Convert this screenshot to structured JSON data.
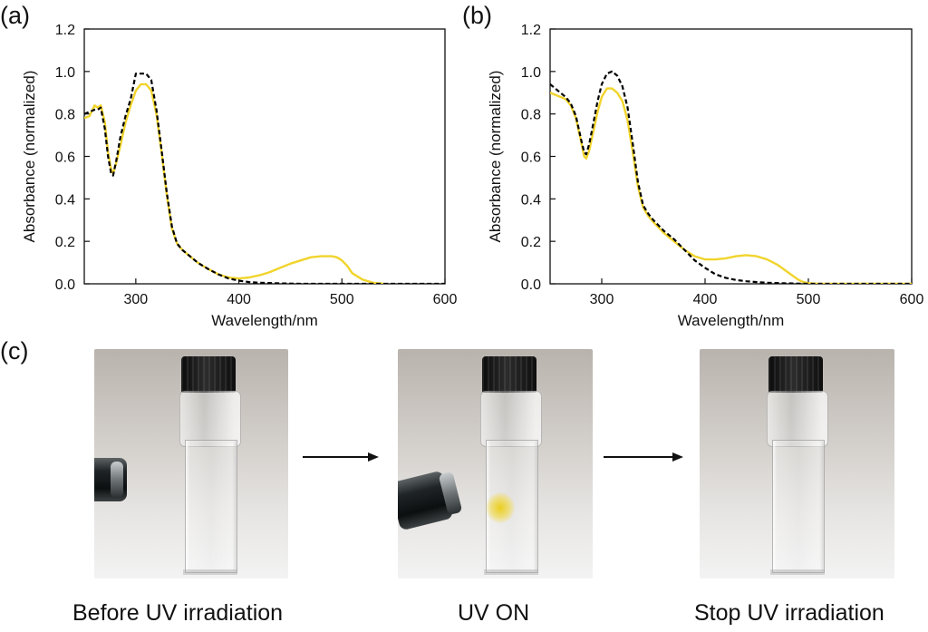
{
  "panels": {
    "a": "(a)",
    "b": "(b)",
    "c": "(c)"
  },
  "colors": {
    "irradiated": "#f1d42c",
    "reference": "#000000"
  },
  "chart_data": [
    {
      "id": "a",
      "type": "line",
      "xlabel": "Wavelength/nm",
      "ylabel": "Absorbance (normalized)",
      "xlim": [
        250,
        600
      ],
      "ylim": [
        0.0,
        1.2
      ],
      "xticks": [
        300,
        400,
        500,
        600
      ],
      "yticks": [
        "0.0",
        "0.2",
        "0.4",
        "0.6",
        "0.8",
        "1.0",
        "1.2"
      ],
      "series": [
        {
          "name": "yellow (UV irradiated)",
          "style": "solid",
          "x": [
            250,
            255,
            260,
            263,
            266,
            270,
            273,
            276,
            278,
            281,
            285,
            290,
            295,
            300,
            305,
            310,
            315,
            320,
            325,
            330,
            335,
            340,
            345,
            350,
            355,
            360,
            370,
            380,
            390,
            400,
            410,
            420,
            430,
            440,
            450,
            460,
            470,
            480,
            490,
            495,
            500,
            505,
            510,
            520,
            530,
            540
          ],
          "y": [
            0.78,
            0.79,
            0.84,
            0.83,
            0.84,
            0.76,
            0.62,
            0.54,
            0.52,
            0.57,
            0.65,
            0.76,
            0.84,
            0.91,
            0.94,
            0.94,
            0.91,
            0.8,
            0.62,
            0.42,
            0.26,
            0.19,
            0.16,
            0.14,
            0.12,
            0.1,
            0.07,
            0.045,
            0.03,
            0.025,
            0.03,
            0.04,
            0.055,
            0.075,
            0.095,
            0.11,
            0.125,
            0.13,
            0.13,
            0.125,
            0.11,
            0.085,
            0.05,
            0.02,
            0.005,
            0.0
          ]
        },
        {
          "name": "black (before irradiation)",
          "style": "dashed",
          "x": [
            250,
            255,
            260,
            263,
            266,
            270,
            273,
            276,
            278,
            281,
            285,
            290,
            295,
            300,
            305,
            310,
            315,
            320,
            325,
            330,
            335,
            340,
            345,
            350,
            355,
            360,
            370,
            380,
            390,
            400,
            410,
            420,
            440,
            460,
            480,
            500,
            540,
            600
          ],
          "y": [
            0.8,
            0.81,
            0.82,
            0.82,
            0.83,
            0.73,
            0.6,
            0.52,
            0.51,
            0.58,
            0.69,
            0.79,
            0.87,
            0.99,
            0.99,
            0.99,
            0.96,
            0.82,
            0.63,
            0.43,
            0.27,
            0.19,
            0.16,
            0.14,
            0.12,
            0.1,
            0.07,
            0.045,
            0.025,
            0.015,
            0.008,
            0.005,
            0.002,
            0.0,
            0.0,
            0.0,
            0.0,
            0.0
          ]
        }
      ]
    },
    {
      "id": "b",
      "type": "line",
      "xlabel": "Wavelength/nm",
      "ylabel": "Absorbance (normalized)",
      "xlim": [
        250,
        600
      ],
      "ylim": [
        0.0,
        1.2
      ],
      "xticks": [
        300,
        400,
        500,
        600
      ],
      "yticks": [
        "0.0",
        "0.2",
        "0.4",
        "0.6",
        "0.8",
        "1.0",
        "1.2"
      ],
      "series": [
        {
          "name": "yellow (UV irradiated)",
          "style": "solid",
          "x": [
            250,
            255,
            260,
            265,
            270,
            275,
            280,
            283,
            285,
            288,
            292,
            296,
            300,
            305,
            310,
            315,
            320,
            325,
            330,
            335,
            340,
            345,
            350,
            360,
            370,
            380,
            390,
            400,
            410,
            420,
            430,
            440,
            450,
            460,
            470,
            480,
            490,
            495,
            500,
            510,
            600
          ],
          "y": [
            0.9,
            0.89,
            0.88,
            0.87,
            0.84,
            0.78,
            0.67,
            0.6,
            0.59,
            0.63,
            0.72,
            0.81,
            0.88,
            0.92,
            0.92,
            0.9,
            0.86,
            0.77,
            0.62,
            0.46,
            0.36,
            0.32,
            0.29,
            0.24,
            0.2,
            0.16,
            0.13,
            0.115,
            0.115,
            0.12,
            0.13,
            0.135,
            0.13,
            0.115,
            0.09,
            0.055,
            0.02,
            0.008,
            0.003,
            0.0,
            0.0
          ]
        },
        {
          "name": "black (before irradiation)",
          "style": "dashed",
          "x": [
            250,
            255,
            260,
            265,
            270,
            275,
            280,
            283,
            285,
            288,
            292,
            296,
            300,
            305,
            310,
            315,
            320,
            325,
            330,
            335,
            340,
            345,
            350,
            360,
            370,
            380,
            390,
            400,
            410,
            420,
            430,
            440,
            450,
            460,
            480,
            500,
            600
          ],
          "y": [
            0.94,
            0.92,
            0.9,
            0.88,
            0.85,
            0.79,
            0.68,
            0.62,
            0.61,
            0.66,
            0.76,
            0.86,
            0.94,
            0.99,
            1.0,
            0.98,
            0.93,
            0.83,
            0.66,
            0.48,
            0.37,
            0.33,
            0.3,
            0.25,
            0.21,
            0.16,
            0.11,
            0.075,
            0.045,
            0.028,
            0.018,
            0.012,
            0.008,
            0.005,
            0.002,
            0.0,
            0.0
          ]
        }
      ]
    }
  ],
  "photos": {
    "before_caption": "Before UV irradiation",
    "uv_on_caption": "UV ON",
    "stop_caption": "Stop UV irradiation"
  }
}
